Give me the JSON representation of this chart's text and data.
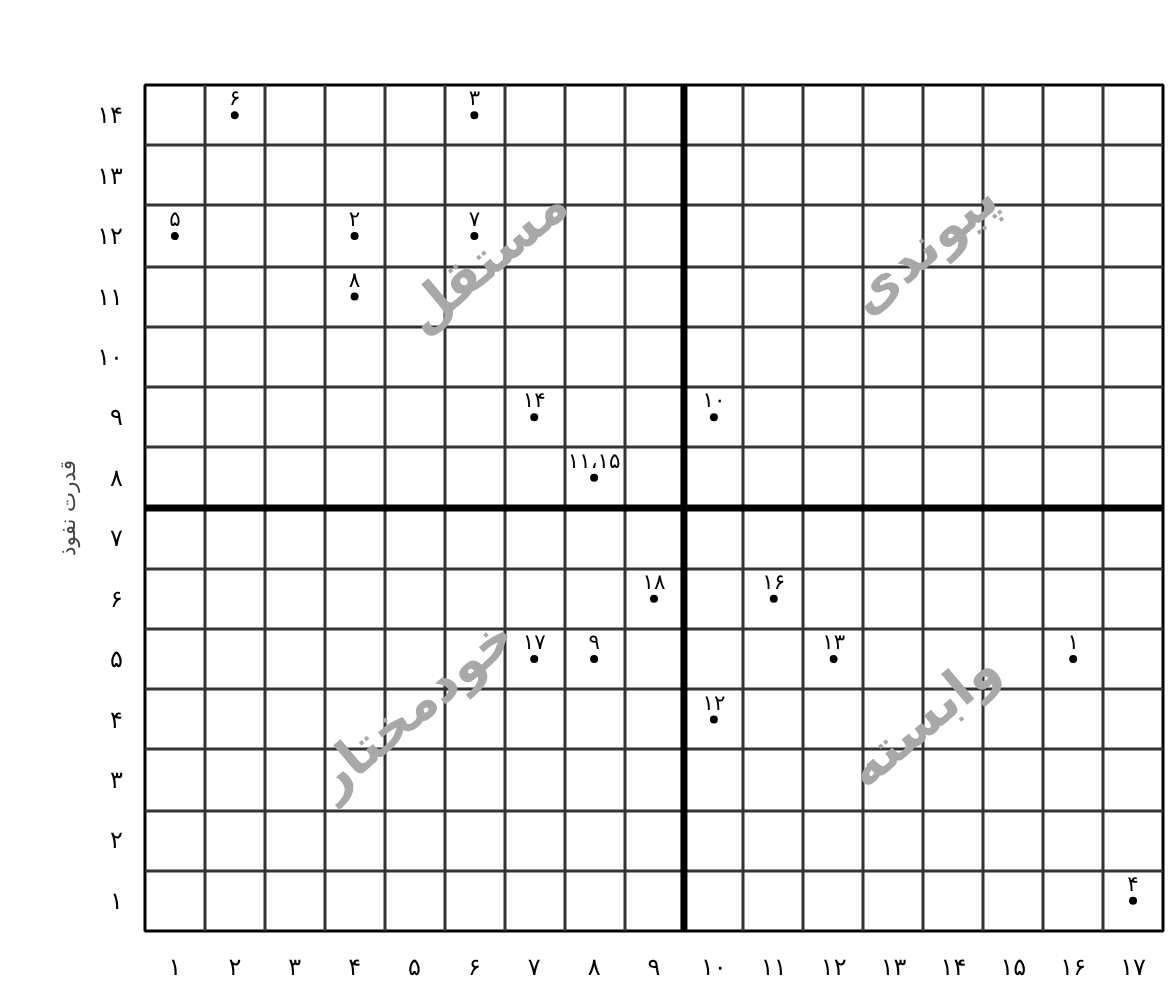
{
  "chart_data": {
    "type": "scatter",
    "ylabel": "قدرت نفوذ",
    "annotations": [
      "مستقل",
      "پیوندی",
      "خودمختار",
      "وابسته"
    ],
    "series": [
      {
        "name": "۱",
        "color": "#000000",
        "x": [
          16
        ],
        "values": [
          5
        ]
      },
      {
        "name": "۲",
        "color": "#000000",
        "x": [
          4
        ],
        "values": [
          12
        ]
      },
      {
        "name": "۳",
        "color": "#000000",
        "x": [
          6
        ],
        "values": [
          14
        ]
      },
      {
        "name": "۴",
        "color": "#000000",
        "x": [
          17
        ],
        "values": [
          1
        ]
      },
      {
        "name": "۵",
        "color": "#000000",
        "x": [
          1
        ],
        "values": [
          12
        ]
      },
      {
        "name": "۶",
        "color": "#000000",
        "x": [
          2
        ],
        "values": [
          14
        ]
      },
      {
        "name": "۷",
        "color": "#000000",
        "x": [
          6
        ],
        "values": [
          12
        ]
      },
      {
        "name": "۸",
        "color": "#000000",
        "x": [
          4
        ],
        "values": [
          11
        ]
      },
      {
        "name": "۹",
        "color": "#000000",
        "x": [
          8
        ],
        "values": [
          5
        ]
      },
      {
        "name": "۱۰",
        "color": "#000000",
        "x": [
          10
        ],
        "values": [
          9
        ]
      },
      {
        "name": "۱۱،۱۵",
        "color": "#000000",
        "x": [
          8
        ],
        "values": [
          8
        ]
      },
      {
        "name": "۱۲",
        "color": "#000000",
        "x": [
          10
        ],
        "values": [
          4
        ]
      },
      {
        "name": "۱۳",
        "color": "#000000",
        "x": [
          12
        ],
        "values": [
          5
        ]
      },
      {
        "name": "۱۴",
        "color": "#000000",
        "x": [
          7
        ],
        "values": [
          9
        ]
      },
      {
        "name": "۱۶",
        "color": "#000000",
        "x": [
          11
        ],
        "values": [
          6
        ]
      },
      {
        "name": "۱۷",
        "color": "#000000",
        "x": [
          7
        ],
        "values": [
          5
        ]
      },
      {
        "name": "۱۸",
        "color": "#000000",
        "x": [
          9
        ],
        "values": [
          6
        ]
      }
    ],
    "marker": "circle",
    "xlim": [
      0.5,
      17.5
    ],
    "ylim": [
      0.5,
      14.5
    ],
    "xticks": [
      {
        "value": 1,
        "label": "۱"
      },
      {
        "value": 2,
        "label": "۲"
      },
      {
        "value": 3,
        "label": "۳"
      },
      {
        "value": 4,
        "label": "۴"
      },
      {
        "value": 5,
        "label": "۵"
      },
      {
        "value": 6,
        "label": "۶"
      },
      {
        "value": 7,
        "label": "۷"
      },
      {
        "value": 8,
        "label": "۸"
      },
      {
        "value": 9,
        "label": "۹"
      },
      {
        "value": 10,
        "label": "۱۰"
      },
      {
        "value": 11,
        "label": "۱۱"
      },
      {
        "value": 12,
        "label": "۱۲"
      },
      {
        "value": 13,
        "label": "۱۳"
      },
      {
        "value": 14,
        "label": "۱۴"
      },
      {
        "value": 15,
        "label": "۱۵"
      },
      {
        "value": 16,
        "label": "۱۶"
      },
      {
        "value": 17,
        "label": "۱۷"
      }
    ],
    "yticks": [
      {
        "value": 1,
        "label": "۱"
      },
      {
        "value": 2,
        "label": "۲"
      },
      {
        "value": 3,
        "label": "۳"
      },
      {
        "value": 4,
        "label": "۴"
      },
      {
        "value": 5,
        "label": "۵"
      },
      {
        "value": 6,
        "label": "۶"
      },
      {
        "value": 7,
        "label": "۷"
      },
      {
        "value": 8,
        "label": "۸"
      },
      {
        "value": 9,
        "label": "۹"
      },
      {
        "value": 10,
        "label": "۱۰"
      },
      {
        "value": 11,
        "label": "۱۱"
      },
      {
        "value": 12,
        "label": "۱۲"
      },
      {
        "value": 13,
        "label": "۱۳"
      },
      {
        "value": 14,
        "label": "۱۴"
      }
    ],
    "grid": true,
    "ref_lines": [
      {
        "axis": "x",
        "value": 9.5,
        "color": "#000000"
      },
      {
        "axis": "y",
        "value": 7.5,
        "color": "#000000"
      }
    ]
  }
}
